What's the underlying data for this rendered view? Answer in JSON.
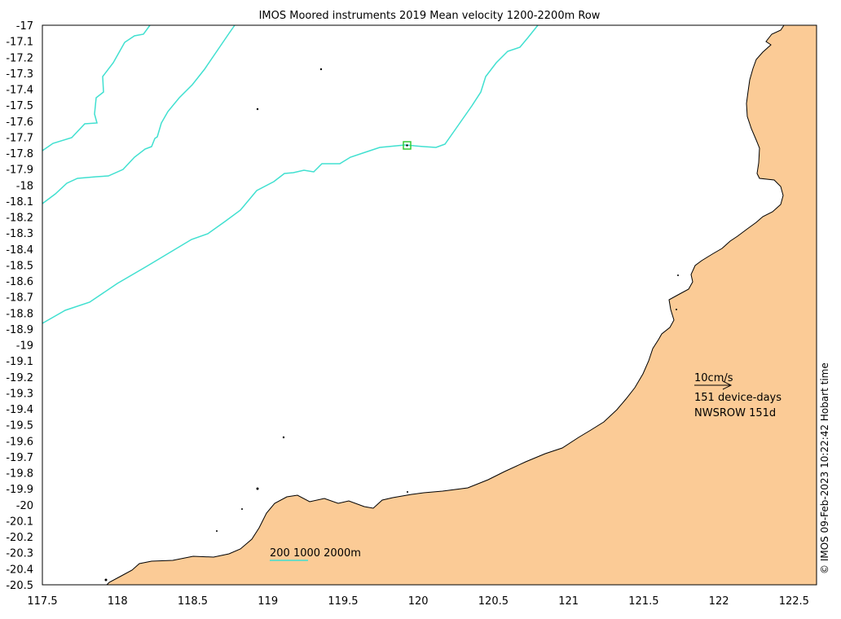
{
  "title": "IMOS Moored instruments 2019 Mean velocity 1200-2200m Row",
  "y_ticks": [
    "-17",
    "-17.1",
    "-17.2",
    "-17.3",
    "-17.4",
    "-17.5",
    "-17.6",
    "-17.7",
    "-17.8",
    "-17.9",
    "-18",
    "-18.1",
    "-18.2",
    "-18.3",
    "-18.4",
    "-18.5",
    "-18.6",
    "-18.7",
    "-18.8",
    "-18.9",
    "-19",
    "-19.1",
    "-19.2",
    "-19.3",
    "-19.4",
    "-19.5",
    "-19.6",
    "-19.7",
    "-19.8",
    "-19.9",
    "-20",
    "-20.1",
    "-20.2",
    "-20.3",
    "-20.4",
    "-20.5"
  ],
  "x_ticks": [
    "117.5",
    "118",
    "118.5",
    "119",
    "119.5",
    "120",
    "120.5",
    "121",
    "121.5",
    "122",
    "122.5"
  ],
  "legend": {
    "scale_label": "10cm/s",
    "device_days": "151 device-days",
    "site": "NWSROW 151d"
  },
  "isobaths_label": "200 1000 2000m",
  "credit": "© IMOS 09-Feb-2023 10:22:42 Hobart time",
  "colors": {
    "land": "#fbcb96",
    "isobath": "#40e0d0",
    "marker": "#33cc33"
  },
  "station": {
    "lon": 119.9,
    "lat": -17.76
  }
}
